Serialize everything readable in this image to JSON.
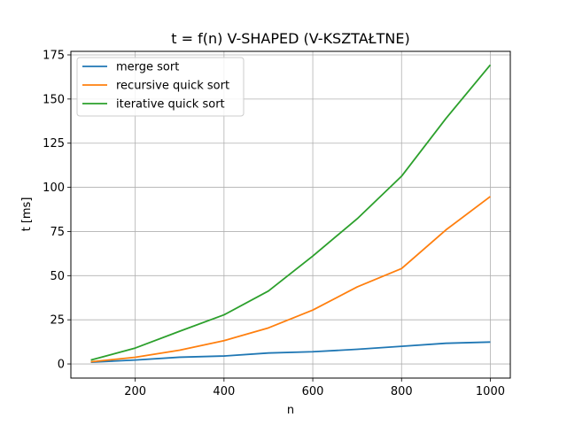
{
  "chart_data": {
    "type": "line",
    "title": "t = f(n) V-SHAPED (V-KSZTAŁTNE)",
    "xlabel": "n",
    "ylabel": "t [ms]",
    "x": [
      100,
      200,
      300,
      400,
      500,
      600,
      700,
      800,
      900,
      1000
    ],
    "xlim": [
      55,
      1045
    ],
    "ylim": [
      -8,
      177
    ],
    "xticks": [
      200,
      400,
      600,
      800,
      1000
    ],
    "yticks": [
      0,
      25,
      50,
      75,
      100,
      125,
      150,
      175
    ],
    "grid": true,
    "legend_position": "top-left",
    "series": [
      {
        "name": "merge sort",
        "color": "#1f77b4",
        "values": [
          1.0,
          2.2,
          3.8,
          4.5,
          6.2,
          6.9,
          8.3,
          10.0,
          11.7,
          12.4
        ]
      },
      {
        "name": "recursive quick sort",
        "color": "#ff7f0e",
        "values": [
          1.2,
          3.8,
          7.8,
          13.2,
          20.4,
          30.5,
          43.6,
          54.0,
          75.9,
          94.8
        ]
      },
      {
        "name": "iterative quick sort",
        "color": "#2ca02c",
        "values": [
          2.2,
          9.0,
          18.5,
          27.8,
          41.3,
          61.1,
          82.2,
          106.3,
          139.0,
          169.3
        ]
      }
    ]
  }
}
